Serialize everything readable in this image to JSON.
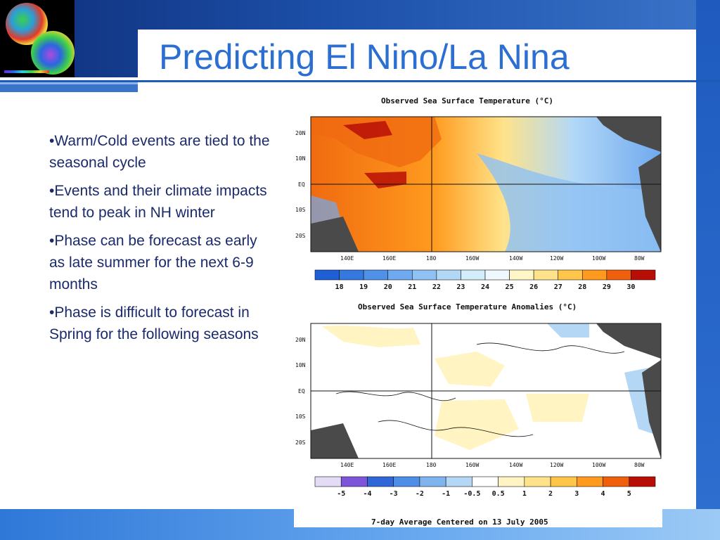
{
  "slide": {
    "title": "Predicting El Nino/La Nina",
    "bullets": [
      "•Warm/Cold events are tied to the seasonal cycle",
      "•Events and their climate impacts tend to peak in NH winter",
      "•Phase can be forecast as early as late summer for the next 6-9 months",
      "•Phase is difficult to forecast in Spring for the following seasons"
    ]
  },
  "figure": {
    "sst_title": "Observed Sea Surface Temperature (°C)",
    "anom_title": "Observed Sea Surface Temperature Anomalies (°C)",
    "footer": "7-day Average Centered on 13 July 2005",
    "lat_labels": [
      "20N",
      "10N",
      "EQ",
      "10S",
      "20S"
    ],
    "lon_labels": [
      "140E",
      "160E",
      "180",
      "160W",
      "140W",
      "120W",
      "100W",
      "80W"
    ],
    "sst_colorbar": {
      "labels": [
        "18",
        "19",
        "20",
        "21",
        "22",
        "23",
        "24",
        "25",
        "26",
        "27",
        "28",
        "29",
        "30"
      ],
      "colors": [
        "#1f5fd6",
        "#3478e0",
        "#4f90e8",
        "#6fa9ef",
        "#8fc1f3",
        "#b2d8f7",
        "#d3eefa",
        "#eef8fd",
        "#fff6c8",
        "#ffe38a",
        "#ffc64a",
        "#ff9a1e",
        "#f0600c",
        "#b80e06"
      ]
    },
    "anom_colorbar": {
      "labels": [
        "-5",
        "-4",
        "-3",
        "-2",
        "-1",
        "-0.5",
        "0.5",
        "1",
        "2",
        "3",
        "4",
        "5"
      ],
      "colors": [
        "#e4dcf6",
        "#7c55d8",
        "#2f67d8",
        "#4f8ee6",
        "#7fb4ef",
        "#b4d7f6",
        "#ffffff",
        "#fff4c2",
        "#ffe38a",
        "#ffc64a",
        "#ff9a1e",
        "#f0600c",
        "#b80e06"
      ]
    }
  }
}
